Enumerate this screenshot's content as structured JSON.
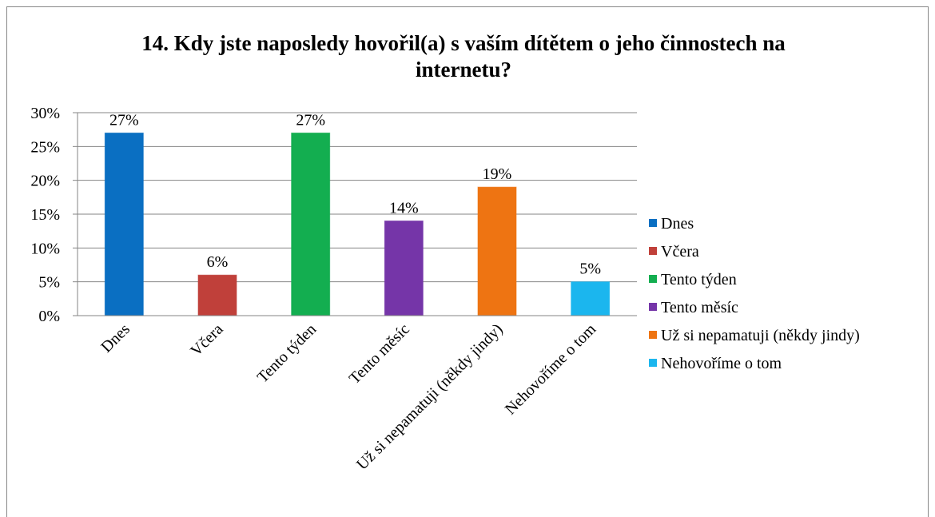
{
  "chart_data": {
    "type": "bar",
    "title": "14. Kdy jste naposledy hovořil(a) s vaším dítětem o jeho činnostech na internetu?",
    "categories": [
      "Dnes",
      "Včera",
      "Tento týden",
      "Tento měsíc",
      "Už si nepamatuji (někdy jindy)",
      "Nehovoříme o tom"
    ],
    "values": [
      27,
      6,
      27,
      14,
      19,
      5
    ],
    "value_labels": [
      "27%",
      "6%",
      "27%",
      "14%",
      "19%",
      "5%"
    ],
    "colors": [
      "#0a6fc2",
      "#c0403a",
      "#13ae50",
      "#7535a8",
      "#ee7412",
      "#1bb6ee"
    ],
    "ylim": [
      0,
      30
    ],
    "yticks": [
      {
        "value": 0,
        "label": "0%"
      },
      {
        "value": 5,
        "label": "5%"
      },
      {
        "value": 10,
        "label": "10%"
      },
      {
        "value": 15,
        "label": "15%"
      },
      {
        "value": 20,
        "label": "20%"
      },
      {
        "value": 25,
        "label": "25%"
      },
      {
        "value": 30,
        "label": "30%"
      }
    ],
    "grid": true,
    "legend": "right"
  }
}
